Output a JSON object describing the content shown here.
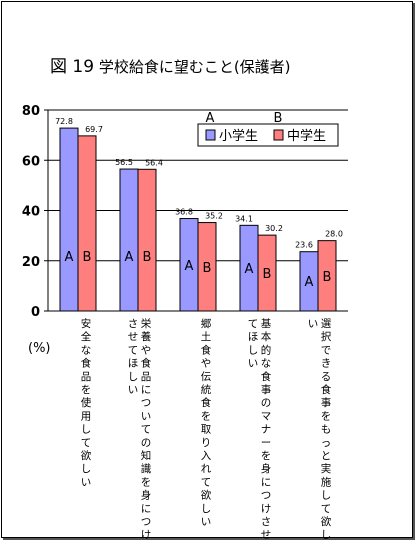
{
  "title": {
    "fig": "図 19",
    "text": "学校給食に望むこと(保護者)"
  },
  "colors": {
    "elementary": "#9999ff",
    "junior_high": "#ff7f7f",
    "plot_bg": "#ffffff",
    "grid": "#000000"
  },
  "chart_data": {
    "type": "bar",
    "title": "学校給食に望むこと(保護者)",
    "ylabel": "(%)",
    "ylim": [
      0,
      80
    ],
    "yticks": [
      0,
      20,
      40,
      60,
      80
    ],
    "grid": true,
    "legend_position": "top-right",
    "categories": [
      "安全な食品を使用して欲しい",
      "栄養や食品についての知識を身につけさせてほしい",
      "郷土食や伝統食を取り入れて欲しい",
      "基本的な食事のマナーを身につけさせてほしい",
      "選択できる食事をもっと実施して欲しい"
    ],
    "category_lines": [
      [
        "安全な食品を使用して欲しい"
      ],
      [
        "栄養や食品についての知識を身につけ",
        "させてほしい"
      ],
      [
        "郷土食や伝統食を取り入れて欲しい"
      ],
      [
        "基本的な食事のマナーを身につけさせ",
        "てほしい"
      ],
      [
        "選択できる食事をもっと実施して欲し",
        "い"
      ]
    ],
    "series": [
      {
        "name": "小学生",
        "marker": "A",
        "values": [
          72.8,
          56.5,
          36.8,
          34.1,
          23.6
        ],
        "labels": [
          "72.8",
          "56.5",
          "36.8",
          "34.1",
          "23.6"
        ]
      },
      {
        "name": "中学生",
        "marker": "B",
        "values": [
          69.7,
          56.4,
          35.2,
          30.2,
          28.0
        ],
        "labels": [
          "69.7",
          "56.4",
          "35.2",
          "30.2",
          "28.0"
        ]
      }
    ],
    "legend_markers": [
      "A",
      "B"
    ]
  }
}
